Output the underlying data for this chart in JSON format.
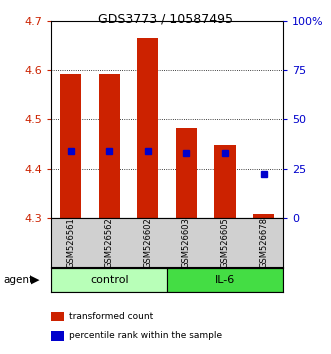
{
  "title": "GDS3773 / 10587495",
  "samples": [
    "GSM526561",
    "GSM526562",
    "GSM526602",
    "GSM526603",
    "GSM526605",
    "GSM526678"
  ],
  "groups": [
    {
      "name": "control",
      "color": "#b8ffb8",
      "n_samples": 3
    },
    {
      "name": "IL-6",
      "color": "#44dd44",
      "n_samples": 3
    }
  ],
  "ylim": [
    4.3,
    4.7
  ],
  "yticks": [
    4.3,
    4.4,
    4.5,
    4.6,
    4.7
  ],
  "y2lim": [
    0,
    100
  ],
  "y2ticks": [
    0,
    25,
    50,
    75,
    100
  ],
  "y2ticklabels": [
    "0",
    "25",
    "50",
    "75",
    "100%"
  ],
  "bar_bottom": 4.3,
  "bar_tops": [
    4.592,
    4.592,
    4.665,
    4.482,
    4.448,
    4.308
  ],
  "percentile_values": [
    34.0,
    34.0,
    34.0,
    33.0,
    33.0,
    22.0
  ],
  "bar_color": "#cc2200",
  "percentile_color": "#0000cc",
  "bar_width": 0.55,
  "percentile_marker_size": 5,
  "grid_yticks": [
    4.4,
    4.5,
    4.6
  ],
  "ylabel_color": "#cc2200",
  "y2label_color": "#0000cc",
  "legend_items": [
    {
      "label": "transformed count",
      "color": "#cc2200"
    },
    {
      "label": "percentile rank within the sample",
      "color": "#0000cc"
    }
  ],
  "agent_label": "agent",
  "background_color": "#ffffff"
}
